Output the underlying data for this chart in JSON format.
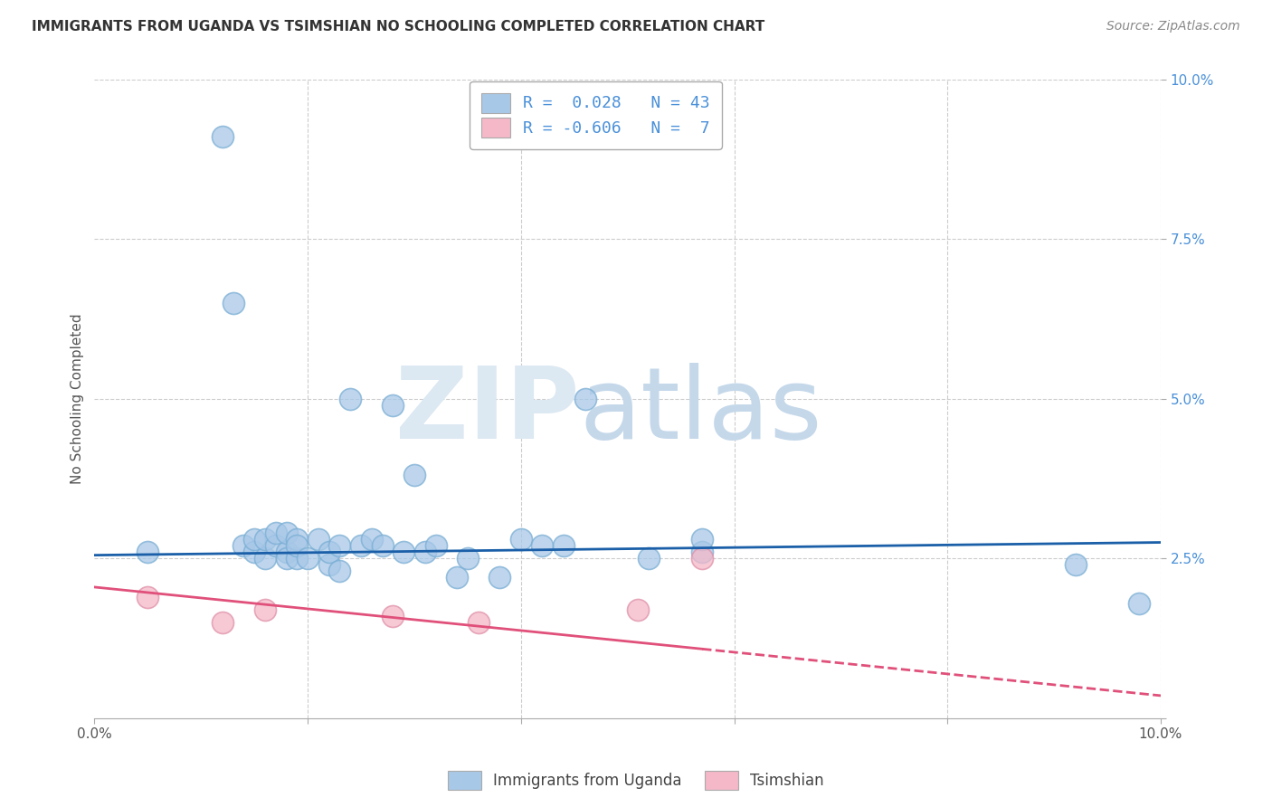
{
  "title": "IMMIGRANTS FROM UGANDA VS TSIMSHIAN NO SCHOOLING COMPLETED CORRELATION CHART",
  "source": "Source: ZipAtlas.com",
  "ylabel": "No Schooling Completed",
  "xlim": [
    0,
    0.1
  ],
  "ylim": [
    0,
    0.1
  ],
  "uganda_color": "#a8c8e8",
  "uganda_edge": "#7aaed4",
  "tsimshian_color": "#f4b8c8",
  "tsimshian_edge": "#e090a8",
  "trend_uganda_color": "#1a5fa8",
  "trend_tsimshian_color": "#e0507a",
  "background_color": "#ffffff",
  "blue_scatter_x": [
    0.005,
    0.012,
    0.013,
    0.014,
    0.015,
    0.015,
    0.016,
    0.016,
    0.017,
    0.017,
    0.018,
    0.018,
    0.018,
    0.019,
    0.019,
    0.019,
    0.02,
    0.021,
    0.022,
    0.022,
    0.023,
    0.023,
    0.024,
    0.025,
    0.026,
    0.027,
    0.028,
    0.029,
    0.03,
    0.031,
    0.032,
    0.034,
    0.035,
    0.038,
    0.04,
    0.042,
    0.044,
    0.046,
    0.052,
    0.057,
    0.057,
    0.092,
    0.098
  ],
  "blue_scatter_y": [
    0.026,
    0.091,
    0.065,
    0.027,
    0.026,
    0.028,
    0.025,
    0.028,
    0.027,
    0.029,
    0.026,
    0.025,
    0.029,
    0.025,
    0.028,
    0.027,
    0.025,
    0.028,
    0.024,
    0.026,
    0.023,
    0.027,
    0.05,
    0.027,
    0.028,
    0.027,
    0.049,
    0.026,
    0.038,
    0.026,
    0.027,
    0.022,
    0.025,
    0.022,
    0.028,
    0.027,
    0.027,
    0.05,
    0.025,
    0.026,
    0.028,
    0.024,
    0.018
  ],
  "pink_scatter_x": [
    0.005,
    0.012,
    0.016,
    0.028,
    0.036,
    0.051,
    0.057
  ],
  "pink_scatter_y": [
    0.019,
    0.015,
    0.017,
    0.016,
    0.015,
    0.017,
    0.025
  ],
  "trend_uganda_x0": 0.0,
  "trend_uganda_x1": 0.1,
  "trend_uganda_y0": 0.0255,
  "trend_uganda_y1": 0.0275,
  "trend_tsimshian_x0": 0.0,
  "trend_tsimshian_x1": 0.1,
  "trend_tsimshian_y0": 0.0205,
  "trend_tsimshian_y1": 0.0035,
  "trend_tsimshian_solid_end": 0.057,
  "yaxis_tick_color": "#4a90d9",
  "title_color": "#333333",
  "title_fontsize": 11,
  "source_color": "#888888",
  "source_fontsize": 10
}
